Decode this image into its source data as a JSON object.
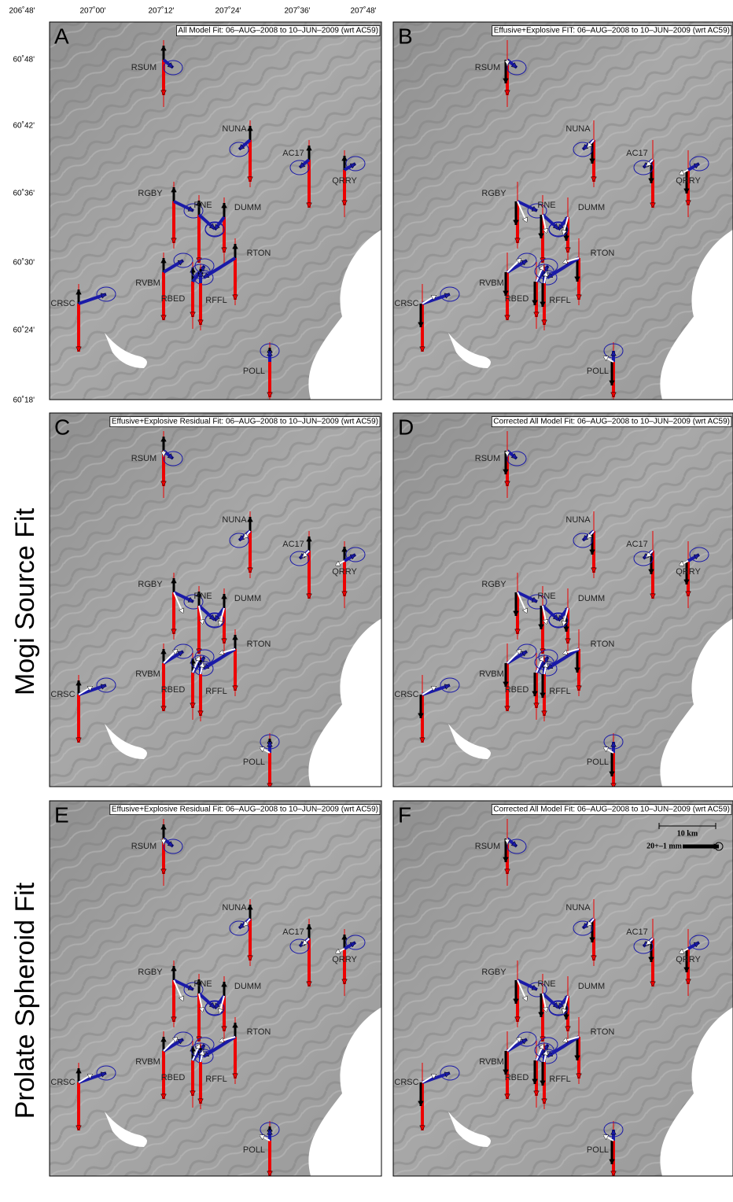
{
  "x_axis": {
    "ticks": [
      "206˚48'",
      "207˚00'",
      "207˚12'",
      "207˚24'",
      "207˚36'",
      "207˚48'"
    ]
  },
  "y_axis": {
    "ticks": [
      "60˚48'",
      "60˚42'",
      "60˚36'",
      "60˚30'",
      "60˚24'",
      "60˚18'"
    ]
  },
  "row_labels": [
    "Mogi Source Fit",
    "Prolate Spheroid Fit"
  ],
  "panels": [
    {
      "letter": "A",
      "title": "All Model Fit: 06–AUG–2008 to 10–JUN–2009 (wrt AC59)",
      "stations": [
        "RSUM",
        "NUNA",
        "AC17",
        "QRRY",
        "RGBY",
        "RNE",
        "DUMM",
        "RTON",
        "RVBM",
        "RBED",
        "RFFL",
        "CRSC",
        "POLL"
      ]
    },
    {
      "letter": "B",
      "title": "Effusive+Explosive FIT: 06–AUG–2008 to 10–JUN–2009 (wrt AC59)",
      "stations": [
        "RSUM",
        "NUNA",
        "AC17",
        "QRRY",
        "RGBY",
        "RNE",
        "DUMM",
        "RTON",
        "RVBM",
        "RBED",
        "RFFL",
        "CRSC",
        "POLL"
      ]
    },
    {
      "letter": "C",
      "title": "Effusive+Explosive Residual Fit: 06–AUG–2008 to 10–JUN–2009 (wrt AC59)",
      "stations": [
        "RSUM",
        "NUNA",
        "AC17",
        "QRRY",
        "RGBY",
        "RNE",
        "DUMM",
        "RTON",
        "RVBM",
        "RBED",
        "RFFL",
        "CRSC",
        "POLL"
      ]
    },
    {
      "letter": "D",
      "title": "Corrected All Model Fit: 06–AUG–2008 to 10–JUN–2009 (wrt AC59)",
      "stations": [
        "RSUM",
        "NUNA",
        "AC17",
        "QRRY",
        "RGBY",
        "RNE",
        "DUMM",
        "RTON",
        "RVBM",
        "RBED",
        "RFFL",
        "CRSC",
        "POLL"
      ]
    },
    {
      "letter": "E",
      "title": "Effusive+Explosive Residual Fit: 06–AUG–2008 to 10–JUN–2009 (wrt AC59)",
      "stations": [
        "RSUM",
        "NUNA",
        "AC17",
        "QRRY",
        "RGBY",
        "RNE",
        "DUMM",
        "RTON",
        "RVBM",
        "RBED",
        "RFFL",
        "CRSC",
        "POLL"
      ]
    },
    {
      "letter": "F",
      "title": "Corrected All Model Fit: 06–AUG–2008 to 10–JUN–2009 (wrt AC59)",
      "stations": [
        "RSUM",
        "NUNA",
        "AC17",
        "QRRY",
        "RGBY",
        "RNE",
        "DUMM",
        "RTON",
        "RVBM",
        "RBED",
        "RFFL",
        "CRSC",
        "POLL"
      ]
    }
  ],
  "scale_bar": {
    "distance": "10 km",
    "vector": "20+–1 mm"
  }
}
